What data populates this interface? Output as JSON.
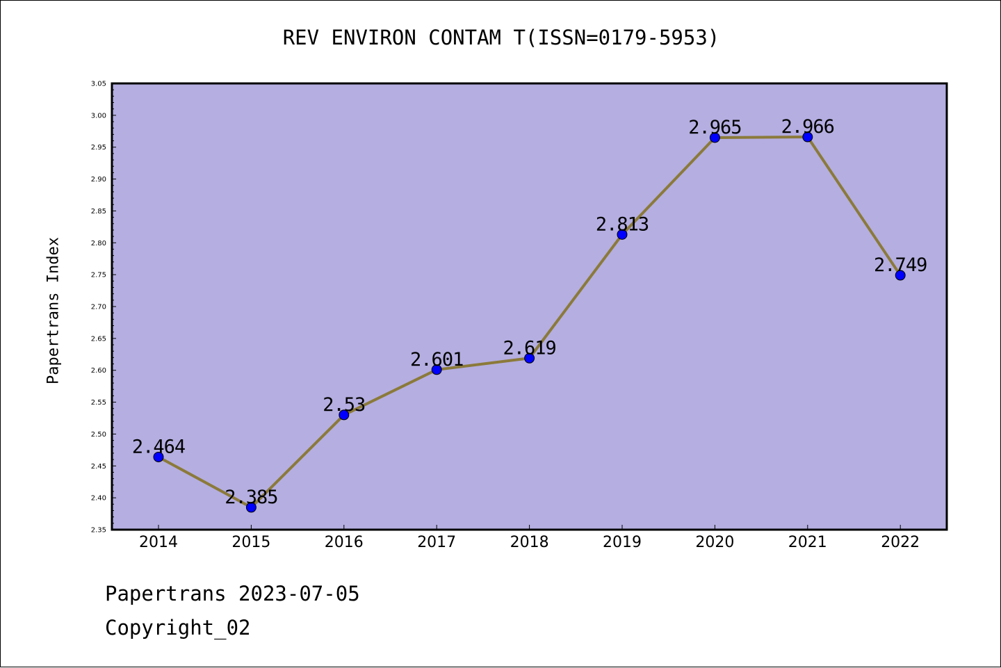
{
  "title": "REV ENVIRON CONTAM T(ISSN=0179-5953)",
  "footer": {
    "source": "Papertrans 2023-07-05",
    "copyright": "Copyright_02"
  },
  "colors": {
    "plot_background": "#b4aee1",
    "line": "#8b7a3a",
    "marker": "#0000ff",
    "axis": "#000000"
  },
  "chart_data": {
    "type": "line",
    "title": "REV ENVIRON CONTAM T(ISSN=0179-5953)",
    "xlabel": "",
    "ylabel": "Papertrans Index",
    "categories": [
      "2014",
      "2015",
      "2016",
      "2017",
      "2018",
      "2019",
      "2020",
      "2021",
      "2022"
    ],
    "values": [
      2.464,
      2.385,
      2.53,
      2.601,
      2.619,
      2.813,
      2.965,
      2.966,
      2.749
    ],
    "data_labels": [
      "2.464",
      "2.385",
      "2.53",
      "2.601",
      "2.619",
      "2.813",
      "2.965",
      "2.966",
      "2.749"
    ],
    "ylim": [
      2.35,
      3.05
    ],
    "yticks": [
      "2.35",
      "2.40",
      "2.45",
      "2.50",
      "2.55",
      "2.60",
      "2.65",
      "2.70",
      "2.75",
      "2.80",
      "2.85",
      "2.90",
      "2.95",
      "3.00",
      "3.05"
    ],
    "grid": false,
    "legend": "none"
  }
}
